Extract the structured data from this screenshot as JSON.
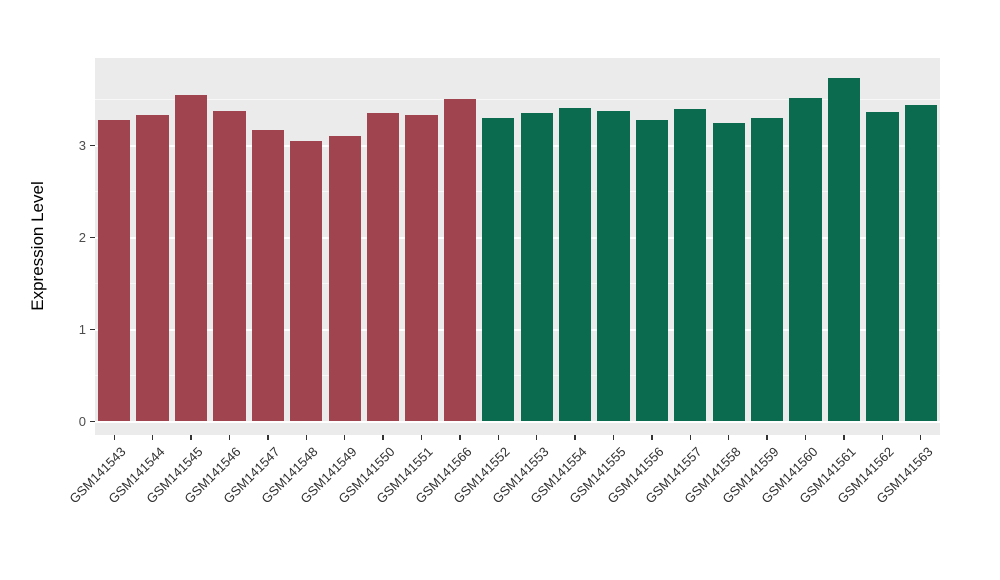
{
  "chart_data": {
    "type": "bar",
    "title": "",
    "xlabel": "",
    "ylabel": "Expression Level",
    "ylim": [
      -0.15,
      3.95
    ],
    "y_ticks": [
      0,
      1,
      2,
      3
    ],
    "y_minor_ticks": [
      0.5,
      1.5,
      2.5,
      3.5
    ],
    "grid": "on",
    "legend_position": "none",
    "panel_background_color": "#EBEBEB",
    "gridline_color": "#FFFFFF",
    "categories": [
      "GSM141543",
      "GSM141544",
      "GSM141545",
      "GSM141546",
      "GSM141547",
      "GSM141548",
      "GSM141549",
      "GSM141550",
      "GSM141551",
      "GSM141566",
      "GSM141552",
      "GSM141553",
      "GSM141554",
      "GSM141555",
      "GSM141556",
      "GSM141557",
      "GSM141558",
      "GSM141559",
      "GSM141560",
      "GSM141561",
      "GSM141562",
      "GSM141563"
    ],
    "values": [
      3.28,
      3.33,
      3.55,
      3.37,
      3.17,
      3.05,
      3.1,
      3.35,
      3.33,
      3.5,
      3.3,
      3.35,
      3.41,
      3.37,
      3.28,
      3.4,
      3.24,
      3.3,
      3.51,
      3.73,
      3.36,
      3.44
    ],
    "bar_groups": [
      "group1",
      "group1",
      "group1",
      "group1",
      "group1",
      "group1",
      "group1",
      "group1",
      "group1",
      "group1",
      "group2",
      "group2",
      "group2",
      "group2",
      "group2",
      "group2",
      "group2",
      "group2",
      "group2",
      "group2",
      "group2",
      "group2"
    ],
    "group_colors": {
      "group1": "#A04550",
      "group2": "#0B6B4F"
    }
  }
}
